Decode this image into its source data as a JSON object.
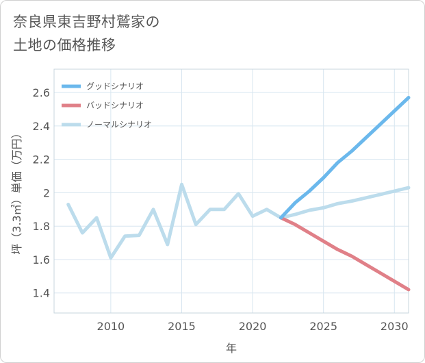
{
  "page": {
    "title_line1": "奈良県東吉野村鷲家の",
    "title_line2": "土地の価格推移"
  },
  "colors": {
    "good": "#6bb8ec",
    "bad": "#e08088",
    "normal": "#bcdcec",
    "grid": "#d8e6f0",
    "frame": "#c7d4de"
  },
  "chart_data": {
    "type": "line",
    "xlabel": "年",
    "ylabel": "坪（3.3㎡）単価（万円）",
    "xlim": [
      2006,
      2031
    ],
    "ylim": [
      1.28,
      2.74
    ],
    "x_ticks": [
      2010,
      2015,
      2020,
      2025,
      2030
    ],
    "y_ticks": [
      1.4,
      1.6,
      1.8,
      2,
      2.2,
      2.4,
      2.6
    ],
    "y_tick_labels": [
      "1.4",
      "1.6",
      "1.8",
      "2",
      "2.2",
      "2.4",
      "2.6"
    ],
    "grid": true,
    "legend_position": "top-left",
    "series": [
      {
        "name": "グッドシナリオ",
        "color_key": "good",
        "x": [
          2022,
          2023,
          2024,
          2025,
          2026,
          2027,
          2028,
          2029,
          2030,
          2031
        ],
        "y": [
          1.85,
          1.94,
          2.01,
          2.09,
          2.18,
          2.25,
          2.33,
          2.41,
          2.49,
          2.57
        ]
      },
      {
        "name": "バッドシナリオ",
        "color_key": "bad",
        "x": [
          2022,
          2023,
          2024,
          2025,
          2026,
          2027,
          2028,
          2029,
          2030,
          2031
        ],
        "y": [
          1.85,
          1.81,
          1.76,
          1.71,
          1.66,
          1.62,
          1.57,
          1.52,
          1.47,
          1.42
        ]
      },
      {
        "name": "ノーマルシナリオ",
        "color_key": "normal",
        "x": [
          2007,
          2008,
          2009,
          2010,
          2011,
          2012,
          2013,
          2014,
          2015,
          2016,
          2017,
          2018,
          2019,
          2020,
          2021,
          2022,
          2023,
          2024,
          2025,
          2026,
          2027,
          2028,
          2029,
          2030,
          2031
        ],
        "y": [
          1.93,
          1.76,
          1.85,
          1.61,
          1.74,
          1.745,
          1.9,
          1.69,
          2.05,
          1.81,
          1.9,
          1.9,
          1.995,
          1.86,
          1.9,
          1.85,
          1.87,
          1.895,
          1.91,
          1.935,
          1.95,
          1.97,
          1.99,
          2.01,
          2.03
        ]
      }
    ]
  }
}
